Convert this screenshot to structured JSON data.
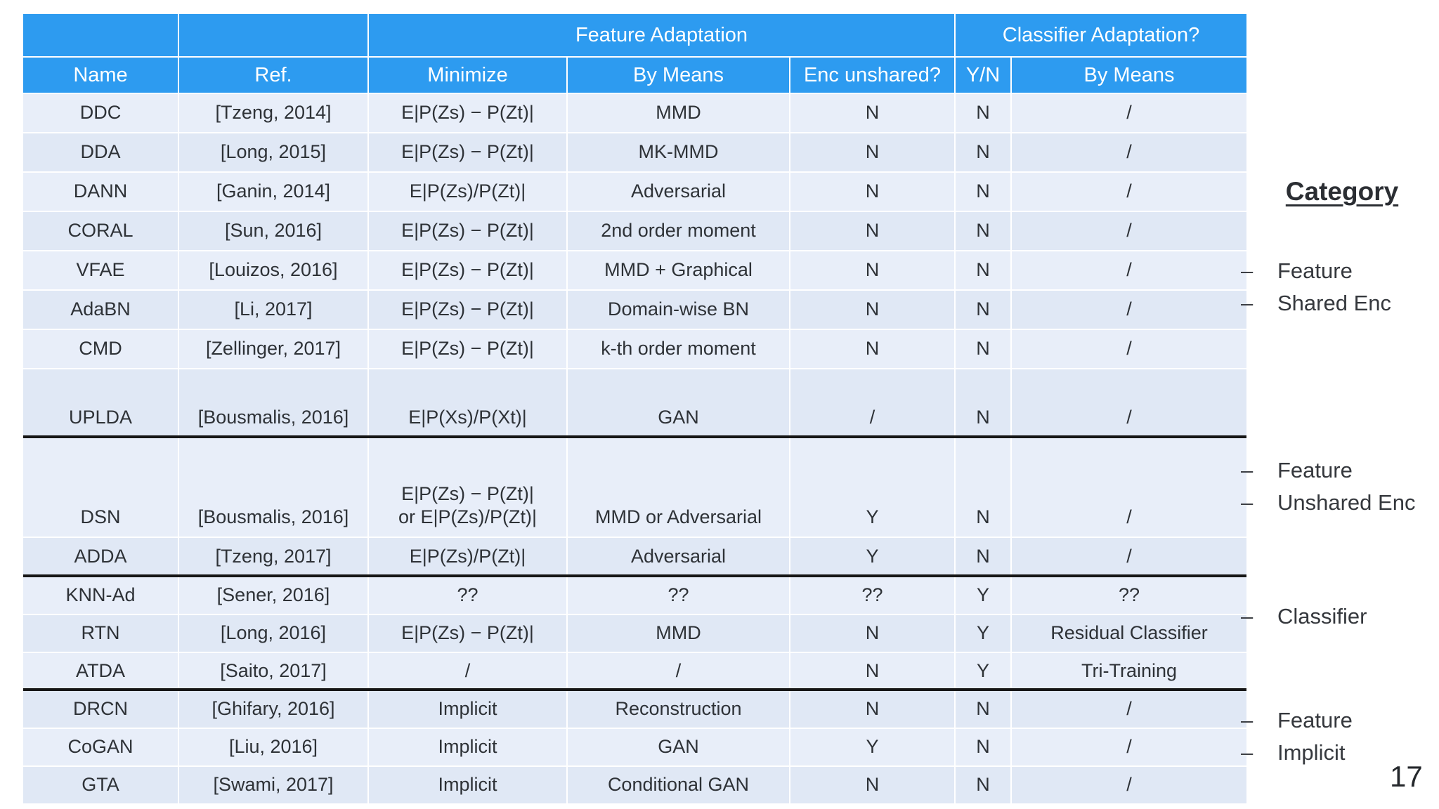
{
  "page_number": "17",
  "colors": {
    "header_blue": "#2d9bf0",
    "row_light": "#e8eef9",
    "row_dark": "#e0e8f5",
    "divider_black": "#161616"
  },
  "table": {
    "feature_adaptation_label": "Feature Adaptation",
    "classifier_adaptation_label": "Classifier Adaptation?",
    "columns": [
      "Name",
      "Ref.",
      "Minimize",
      "By Means",
      "Enc unshared?",
      "Y/N",
      "By Means"
    ],
    "rows": [
      {
        "name": "DDC",
        "ref": "[Tzeng, 2014]",
        "minimize": "E|P(Zs) − P(Zt)|",
        "by_means": "MMD",
        "enc_unshared": "N",
        "yn": "N",
        "clf_by_means": "/",
        "separator_after": false
      },
      {
        "name": "DDA",
        "ref": "[Long, 2015]",
        "minimize": "E|P(Zs) − P(Zt)|",
        "by_means": "MK-MMD",
        "enc_unshared": "N",
        "yn": "N",
        "clf_by_means": "/",
        "separator_after": false
      },
      {
        "name": "DANN",
        "ref": "[Ganin, 2014]",
        "minimize": "E|P(Zs)/P(Zt)|",
        "by_means": "Adversarial",
        "enc_unshared": "N",
        "yn": "N",
        "clf_by_means": "/",
        "separator_after": false
      },
      {
        "name": "CORAL",
        "ref": "[Sun, 2016]",
        "minimize": "E|P(Zs) − P(Zt)|",
        "by_means": "2nd order moment",
        "enc_unshared": "N",
        "yn": "N",
        "clf_by_means": "/",
        "separator_after": false
      },
      {
        "name": "VFAE",
        "ref": "[Louizos, 2016]",
        "minimize": "E|P(Zs) − P(Zt)|",
        "by_means": "MMD + Graphical",
        "enc_unshared": "N",
        "yn": "N",
        "clf_by_means": "/",
        "separator_after": false
      },
      {
        "name": "AdaBN",
        "ref": "[Li, 2017]",
        "minimize": "E|P(Zs) − P(Zt)|",
        "by_means": "Domain-wise BN",
        "enc_unshared": "N",
        "yn": "N",
        "clf_by_means": "/",
        "separator_after": false
      },
      {
        "name": "CMD",
        "ref": "[Zellinger, 2017]",
        "minimize": "E|P(Zs) − P(Zt)|",
        "by_means": "k-th order moment",
        "enc_unshared": "N",
        "yn": "N",
        "clf_by_means": "/",
        "separator_after": false
      },
      {
        "name": "UPLDA",
        "ref": "[Bousmalis, 2016]",
        "minimize": "E|P(Xs)/P(Xt)|",
        "by_means": "GAN",
        "enc_unshared": "/",
        "yn": "N",
        "clf_by_means": "/",
        "separator_after": true
      },
      {
        "name": "DSN",
        "ref": "[Bousmalis, 2016]",
        "minimize": "E|P(Zs) − P(Zt)|\nor E|P(Zs)/P(Zt)|",
        "by_means": "MMD or Adversarial",
        "enc_unshared": "Y",
        "yn": "N",
        "clf_by_means": "/",
        "separator_after": false
      },
      {
        "name": "ADDA",
        "ref": "[Tzeng, 2017]",
        "minimize": "E|P(Zs)/P(Zt)|",
        "by_means": "Adversarial",
        "enc_unshared": "Y",
        "yn": "N",
        "clf_by_means": "/",
        "separator_after": true
      },
      {
        "name": "KNN-Ad",
        "ref": "[Sener, 2016]",
        "minimize": "??",
        "by_means": "??",
        "enc_unshared": "??",
        "yn": "Y",
        "clf_by_means": "??",
        "separator_after": false
      },
      {
        "name": "RTN",
        "ref": "[Long, 2016]",
        "minimize": "E|P(Zs) − P(Zt)|",
        "by_means": "MMD",
        "enc_unshared": "N",
        "yn": "Y",
        "clf_by_means": "Residual Classifier",
        "separator_after": false
      },
      {
        "name": "ATDA",
        "ref": "[Saito, 2017]",
        "minimize": "/",
        "by_means": "/",
        "enc_unshared": "N",
        "yn": "Y",
        "clf_by_means": "Tri-Training",
        "separator_after": true
      },
      {
        "name": "DRCN",
        "ref": "[Ghifary, 2016]",
        "minimize": "Implicit",
        "by_means": "Reconstruction",
        "enc_unshared": "N",
        "yn": "N",
        "clf_by_means": "/",
        "separator_after": false
      },
      {
        "name": "CoGAN",
        "ref": "[Liu, 2016]",
        "minimize": "Implicit",
        "by_means": "GAN",
        "enc_unshared": "Y",
        "yn": "N",
        "clf_by_means": "/",
        "separator_after": false
      },
      {
        "name": "GTA",
        "ref": "[Swami, 2017]",
        "minimize": "Implicit",
        "by_means": "Conditional GAN",
        "enc_unshared": "N",
        "yn": "N",
        "clf_by_means": "/",
        "separator_after": false
      }
    ]
  },
  "category_panel": {
    "title": "Category",
    "bullet": "–",
    "groups": [
      {
        "items": [
          "Feature",
          "Shared Enc"
        ]
      },
      {
        "items": [
          "Feature",
          "Unshared Enc"
        ]
      },
      {
        "items": [
          "Classifier"
        ]
      },
      {
        "items": [
          "Feature",
          "Implicit"
        ]
      }
    ]
  }
}
